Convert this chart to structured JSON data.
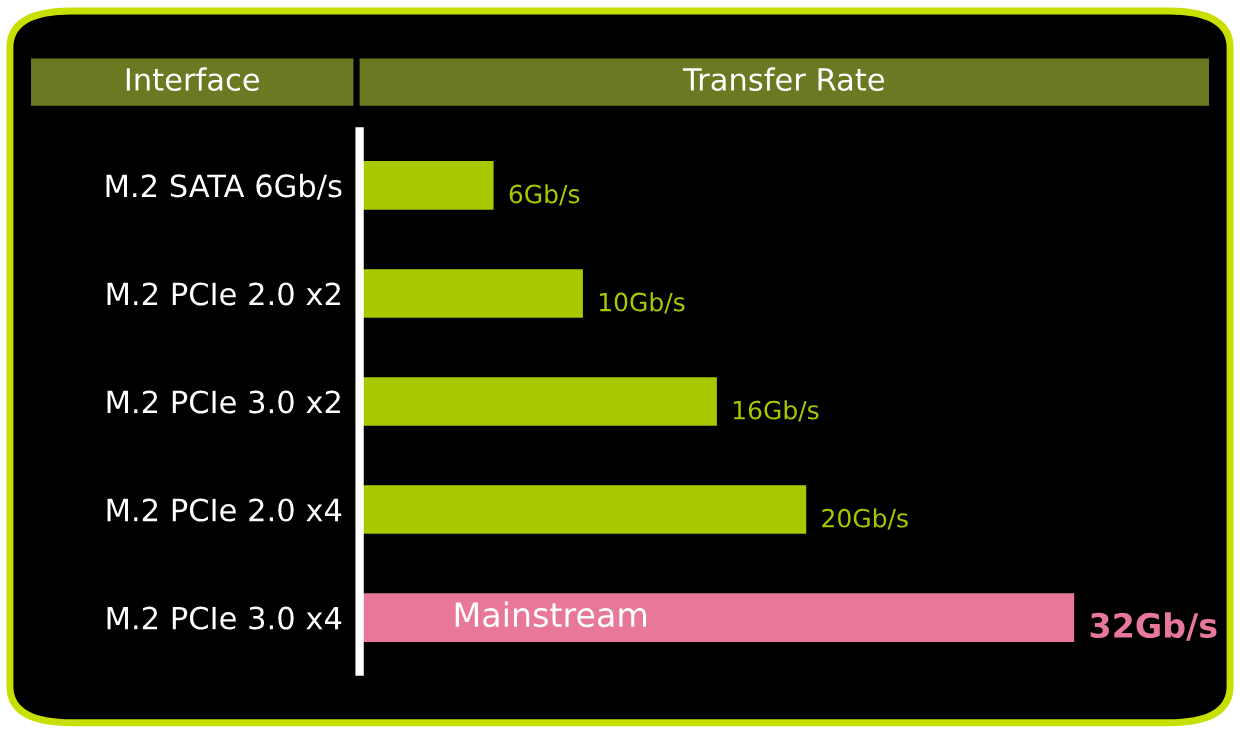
{
  "chart_data": {
    "type": "bar",
    "orientation": "horizontal",
    "ylabel": "Interface",
    "xlabel": "Transfer Rate",
    "categories": [
      "M.2 SATA 6Gb/s",
      "M.2 PCIe 2.0 x2",
      "M.2 PCIe 3.0 x2",
      "M.2 PCIe 2.0 x4",
      "M.2 PCIe 3.0 x4"
    ],
    "values": [
      6,
      10,
      16,
      20,
      32
    ],
    "value_labels": [
      "6Gb/s",
      "10Gb/s",
      "16Gb/s",
      "20Gb/s",
      "32Gb/s"
    ],
    "colors": [
      "#a8c800",
      "#a8c800",
      "#a8c800",
      "#a8c800",
      "#e8789a"
    ],
    "annotations": [
      "Mainstream"
    ],
    "tick_labels": "y",
    "grid": false,
    "legend": false
  }
}
